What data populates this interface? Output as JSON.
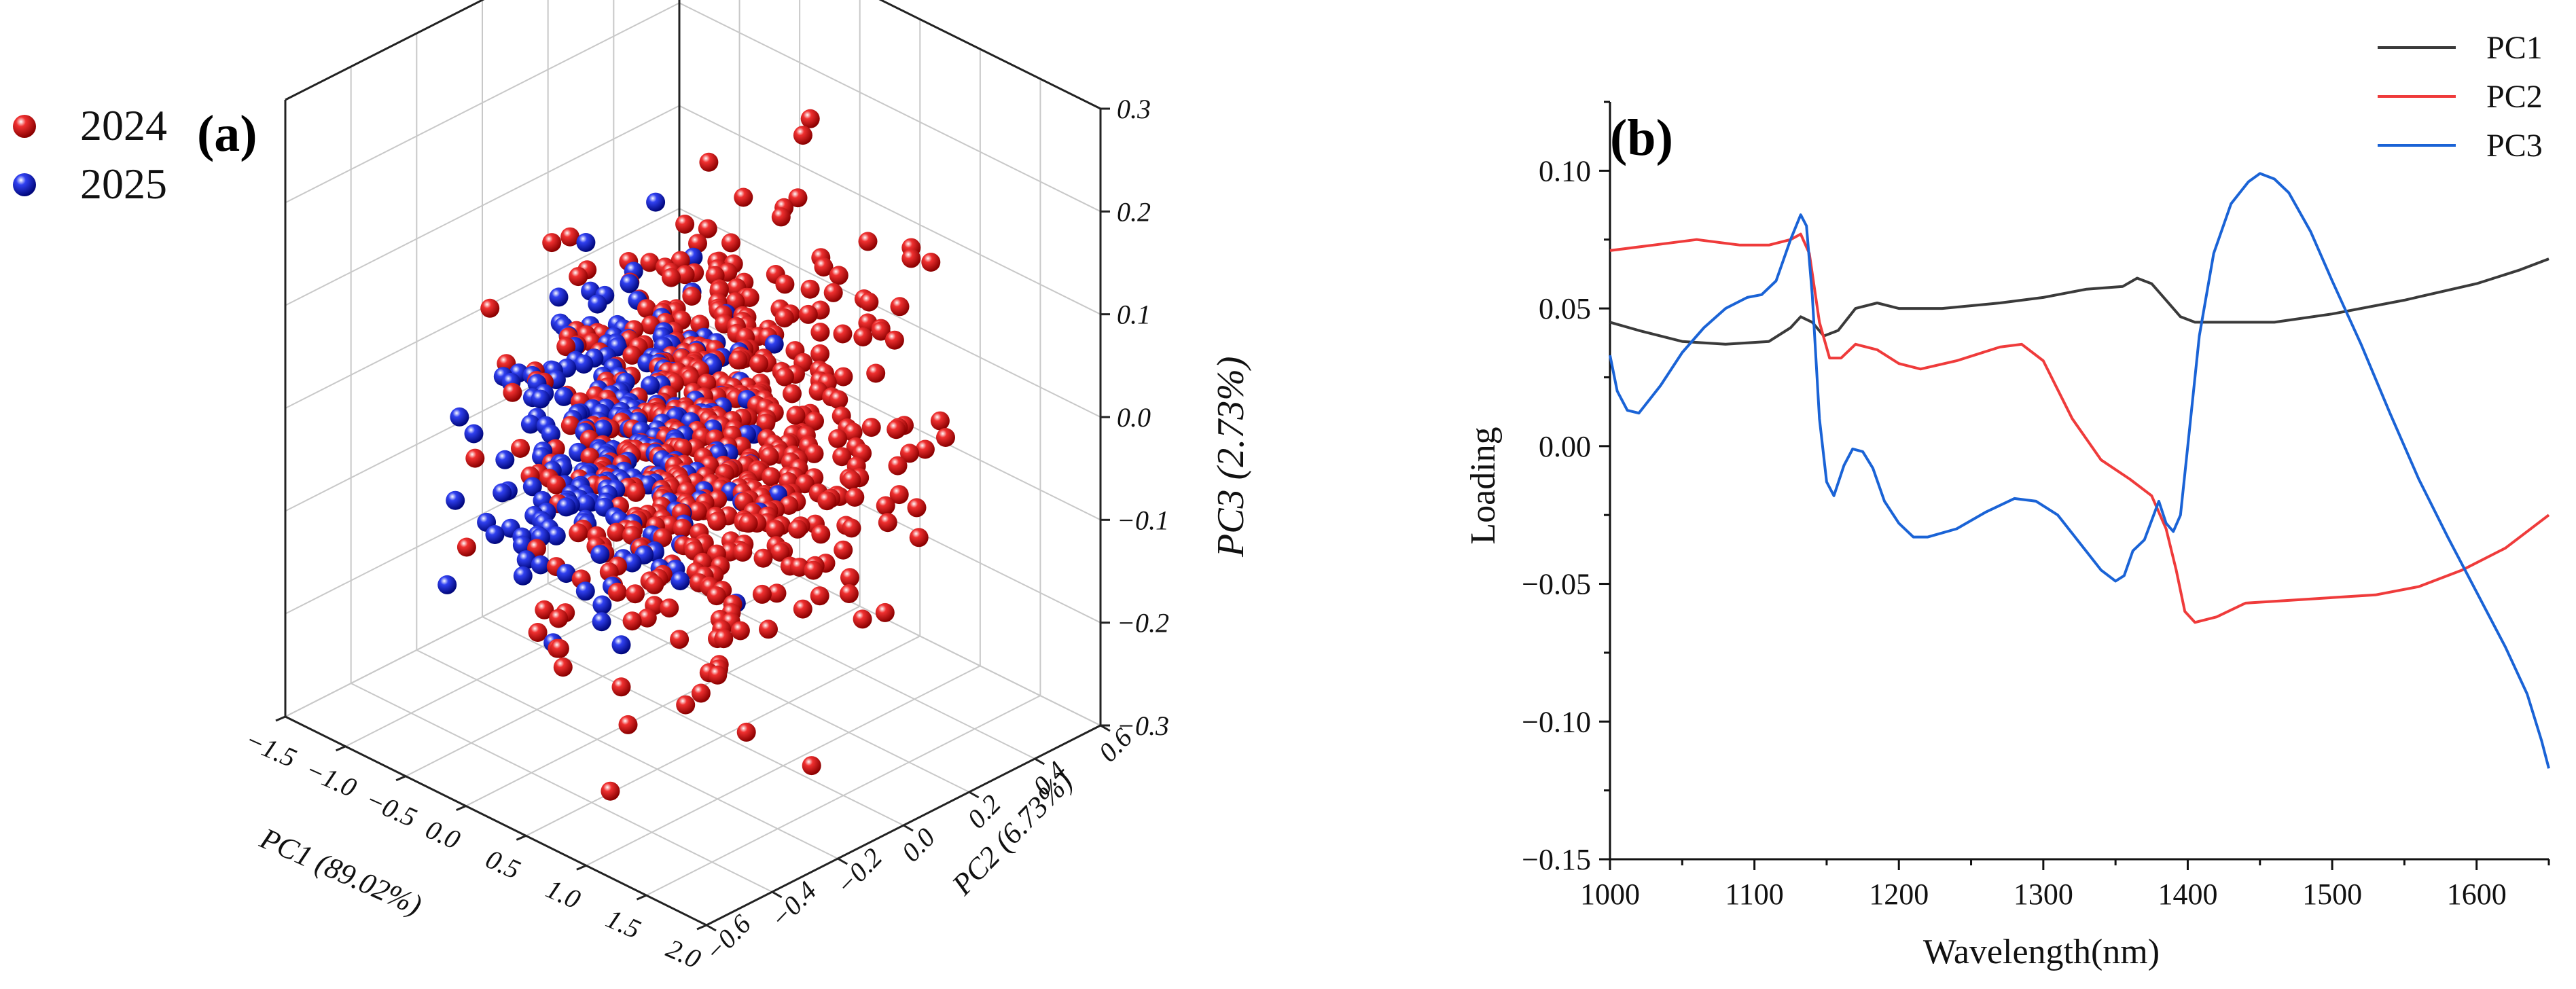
{
  "panels": {
    "a_label": "(a)",
    "b_label": "(b)"
  },
  "chart_data": [
    {
      "type": "scatter",
      "panel": "(a)",
      "title": "",
      "xlabel": "PC1 (89.02%)",
      "ylabel": "PC2 (6.73%)",
      "zlabel": "PC3 (2.73%)",
      "x_ticks": [
        "−1.5",
        "−1.0",
        "−0.5",
        "0.0",
        "0.5",
        "1.0",
        "1.5",
        "2.0"
      ],
      "y_ticks": [
        "−0.6",
        "−0.4",
        "−0.2",
        "0.0",
        "0.2",
        "0.4",
        "0.6"
      ],
      "z_ticks": [
        "0.3",
        "0.2",
        "0.1",
        "0.0",
        "−0.1",
        "−0.2",
        "−0.3"
      ],
      "xlim": [
        -1.5,
        2.0
      ],
      "ylim": [
        -0.6,
        0.6
      ],
      "zlim": [
        -0.3,
        0.3
      ],
      "legend": [
        {
          "name": "2024",
          "color": "#e01010"
        },
        {
          "name": "2025",
          "color": "#1018c8"
        }
      ],
      "legend_position": "top-left",
      "series": [
        {
          "name": "2024",
          "color": "#e01010",
          "count": 560,
          "note": "approximate cloud, PC1 about 0.0 to 2.0, PC3 about -0.25 to 0.28"
        },
        {
          "name": "2025",
          "color": "#1018c8",
          "count": 260,
          "note": "approximate cloud, PC1 about -1.2 to 0.3, PC3 about -0.22 to 0.08"
        }
      ]
    },
    {
      "type": "line",
      "panel": "(b)",
      "title": "",
      "xlabel": "Wavelength(nm)",
      "ylabel": "Loading",
      "xlim": [
        1000,
        1650
      ],
      "ylim": [
        -0.15,
        0.125
      ],
      "x_ticks": [
        "1000",
        "1100",
        "1200",
        "1300",
        "1400",
        "1500",
        "1600"
      ],
      "y_ticks": [
        "0.10",
        "0.05",
        "0.00",
        "−0.05",
        "−0.10",
        "−0.15"
      ],
      "legend_position": "top-right",
      "series": [
        {
          "name": "PC1",
          "color": "#3a3a3a",
          "points": [
            [
              1000,
              0.045
            ],
            [
              1020,
              0.042
            ],
            [
              1050,
              0.038
            ],
            [
              1080,
              0.037
            ],
            [
              1110,
              0.038
            ],
            [
              1125,
              0.043
            ],
            [
              1132,
              0.047
            ],
            [
              1140,
              0.045
            ],
            [
              1148,
              0.04
            ],
            [
              1158,
              0.042
            ],
            [
              1170,
              0.05
            ],
            [
              1185,
              0.052
            ],
            [
              1200,
              0.05
            ],
            [
              1230,
              0.05
            ],
            [
              1270,
              0.052
            ],
            [
              1300,
              0.054
            ],
            [
              1330,
              0.057
            ],
            [
              1355,
              0.058
            ],
            [
              1365,
              0.061
            ],
            [
              1375,
              0.059
            ],
            [
              1385,
              0.053
            ],
            [
              1395,
              0.047
            ],
            [
              1405,
              0.045
            ],
            [
              1430,
              0.045
            ],
            [
              1460,
              0.045
            ],
            [
              1500,
              0.048
            ],
            [
              1550,
              0.053
            ],
            [
              1600,
              0.059
            ],
            [
              1630,
              0.064
            ],
            [
              1650,
              0.068
            ]
          ]
        },
        {
          "name": "PC2",
          "color": "#ef3b3b",
          "points": [
            [
              1000,
              0.071
            ],
            [
              1030,
              0.073
            ],
            [
              1060,
              0.075
            ],
            [
              1090,
              0.073
            ],
            [
              1110,
              0.073
            ],
            [
              1125,
              0.075
            ],
            [
              1132,
              0.077
            ],
            [
              1138,
              0.07
            ],
            [
              1145,
              0.045
            ],
            [
              1152,
              0.032
            ],
            [
              1160,
              0.032
            ],
            [
              1170,
              0.037
            ],
            [
              1185,
              0.035
            ],
            [
              1200,
              0.03
            ],
            [
              1215,
              0.028
            ],
            [
              1240,
              0.031
            ],
            [
              1270,
              0.036
            ],
            [
              1285,
              0.037
            ],
            [
              1300,
              0.031
            ],
            [
              1320,
              0.01
            ],
            [
              1340,
              -0.005
            ],
            [
              1360,
              -0.012
            ],
            [
              1375,
              -0.018
            ],
            [
              1385,
              -0.03
            ],
            [
              1392,
              -0.045
            ],
            [
              1398,
              -0.06
            ],
            [
              1405,
              -0.064
            ],
            [
              1420,
              -0.062
            ],
            [
              1440,
              -0.057
            ],
            [
              1470,
              -0.056
            ],
            [
              1500,
              -0.055
            ],
            [
              1530,
              -0.054
            ],
            [
              1560,
              -0.051
            ],
            [
              1590,
              -0.045
            ],
            [
              1620,
              -0.037
            ],
            [
              1650,
              -0.025
            ]
          ]
        },
        {
          "name": "PC3",
          "color": "#1a63d6",
          "points": [
            [
              1000,
              0.033
            ],
            [
              1005,
              0.02
            ],
            [
              1012,
              0.013
            ],
            [
              1020,
              0.012
            ],
            [
              1035,
              0.022
            ],
            [
              1050,
              0.034
            ],
            [
              1065,
              0.043
            ],
            [
              1080,
              0.05
            ],
            [
              1095,
              0.054
            ],
            [
              1105,
              0.055
            ],
            [
              1115,
              0.06
            ],
            [
              1125,
              0.075
            ],
            [
              1132,
              0.084
            ],
            [
              1136,
              0.08
            ],
            [
              1140,
              0.055
            ],
            [
              1145,
              0.01
            ],
            [
              1150,
              -0.013
            ],
            [
              1155,
              -0.018
            ],
            [
              1162,
              -0.007
            ],
            [
              1168,
              -0.001
            ],
            [
              1175,
              -0.002
            ],
            [
              1182,
              -0.008
            ],
            [
              1190,
              -0.02
            ],
            [
              1200,
              -0.028
            ],
            [
              1210,
              -0.033
            ],
            [
              1220,
              -0.033
            ],
            [
              1240,
              -0.03
            ],
            [
              1260,
              -0.024
            ],
            [
              1280,
              -0.019
            ],
            [
              1295,
              -0.02
            ],
            [
              1310,
              -0.025
            ],
            [
              1325,
              -0.035
            ],
            [
              1340,
              -0.045
            ],
            [
              1350,
              -0.049
            ],
            [
              1356,
              -0.047
            ],
            [
              1362,
              -0.038
            ],
            [
              1370,
              -0.034
            ],
            [
              1380,
              -0.02
            ],
            [
              1385,
              -0.028
            ],
            [
              1390,
              -0.031
            ],
            [
              1395,
              -0.025
            ],
            [
              1400,
              0.0
            ],
            [
              1408,
              0.04
            ],
            [
              1418,
              0.07
            ],
            [
              1430,
              0.088
            ],
            [
              1442,
              0.096
            ],
            [
              1450,
              0.099
            ],
            [
              1460,
              0.097
            ],
            [
              1470,
              0.092
            ],
            [
              1485,
              0.078
            ],
            [
              1500,
              0.06
            ],
            [
              1520,
              0.037
            ],
            [
              1540,
              0.012
            ],
            [
              1560,
              -0.012
            ],
            [
              1580,
              -0.033
            ],
            [
              1600,
              -0.053
            ],
            [
              1620,
              -0.073
            ],
            [
              1635,
              -0.09
            ],
            [
              1645,
              -0.107
            ],
            [
              1650,
              -0.117
            ]
          ]
        }
      ]
    }
  ]
}
